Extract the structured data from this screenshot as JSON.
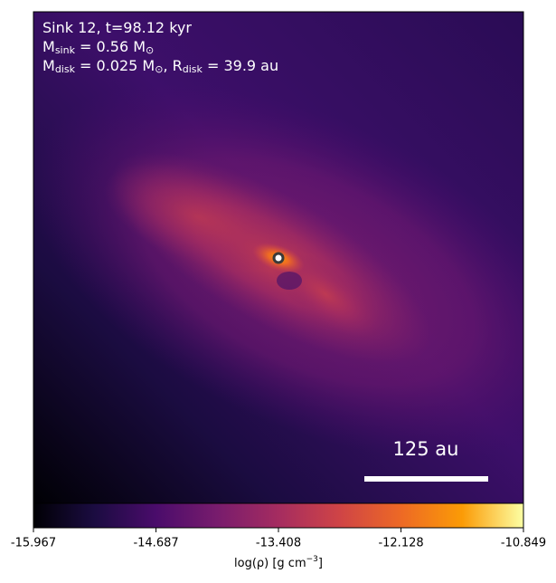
{
  "chart_data": {
    "type": "image",
    "annotations": [
      [
        "Sink 12, t=98.12 kyr"
      ],
      [
        "M",
        "sink",
        " = 0.56 M",
        "⊙"
      ],
      [
        "M",
        "disk",
        " = 0.025 M",
        "⊙",
        ", R",
        "disk",
        " = 39.9 au"
      ]
    ],
    "scale_bar_label": "125 au",
    "colorbar": {
      "label": [
        "log(ρ) [g cm",
        "−3",
        "]"
      ],
      "lim": [
        -15.967,
        -10.849
      ],
      "ticks": [
        -15.967,
        -14.687,
        -13.408,
        -12.128,
        -10.849
      ],
      "colormap": [
        "#000004",
        "#1b0c41",
        "#4a0c6b",
        "#781c6d",
        "#a52c60",
        "#cf4446",
        "#ed6925",
        "#fb9b06",
        "#fcffa4"
      ]
    }
  }
}
